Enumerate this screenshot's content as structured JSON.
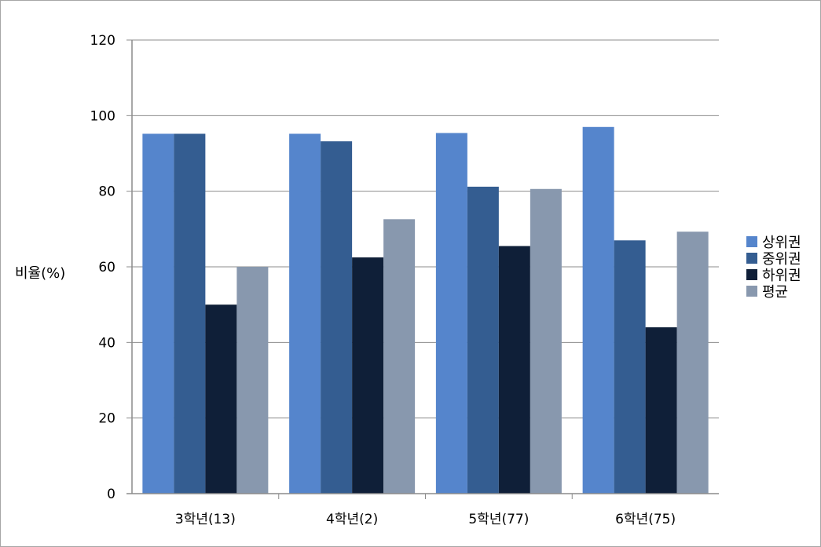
{
  "chart_data": {
    "type": "bar",
    "ylabel": "비율(%)",
    "xlabel": "",
    "ylim": [
      0,
      120
    ],
    "yticks": [
      0,
      20,
      40,
      60,
      80,
      100,
      120
    ],
    "grid": true,
    "legend_position": "right",
    "categories": [
      "3학년(13)",
      "4학년(2)",
      "5학년(77)",
      "6학년(75)"
    ],
    "series": [
      {
        "name": "상위권",
        "color": "#5585cc",
        "values": [
          95.2,
          95.2,
          95.4,
          97
        ]
      },
      {
        "name": "중위권",
        "color": "#345d91",
        "values": [
          95.2,
          93.2,
          81.2,
          67
        ]
      },
      {
        "name": "하위권",
        "color": "#0f1f38",
        "values": [
          50,
          62.5,
          65.5,
          44
        ]
      },
      {
        "name": "평균",
        "color": "#8898ae",
        "values": [
          60,
          72.6,
          80.6,
          69.3
        ]
      }
    ]
  }
}
